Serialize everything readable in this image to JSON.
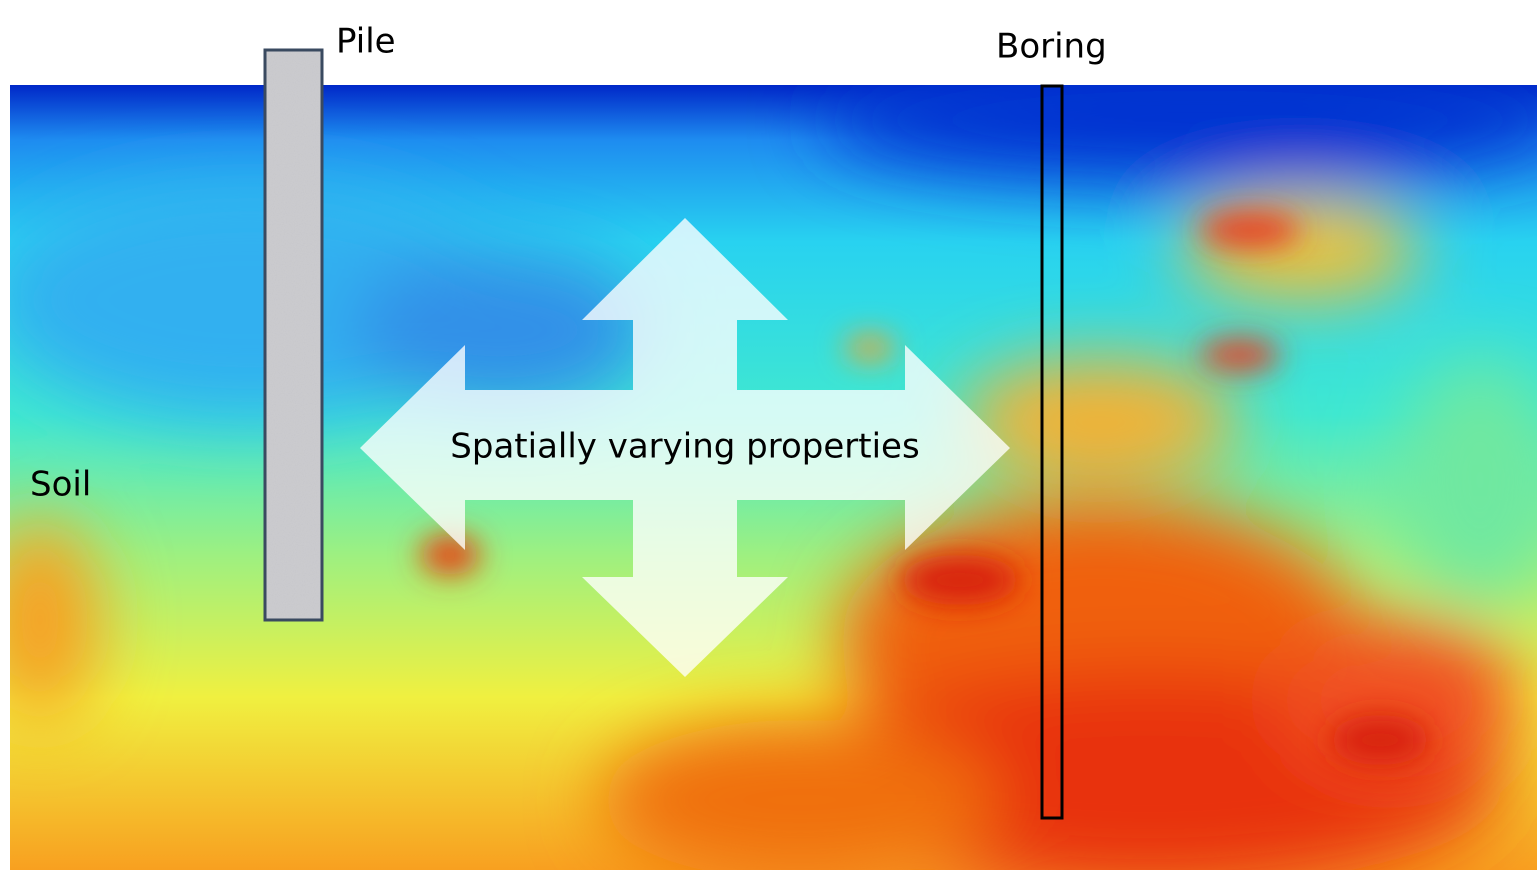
{
  "labels": {
    "pile": "Pile",
    "boring": "Boring",
    "soil": "Soil",
    "arrow": "Spatially varying properties"
  }
}
